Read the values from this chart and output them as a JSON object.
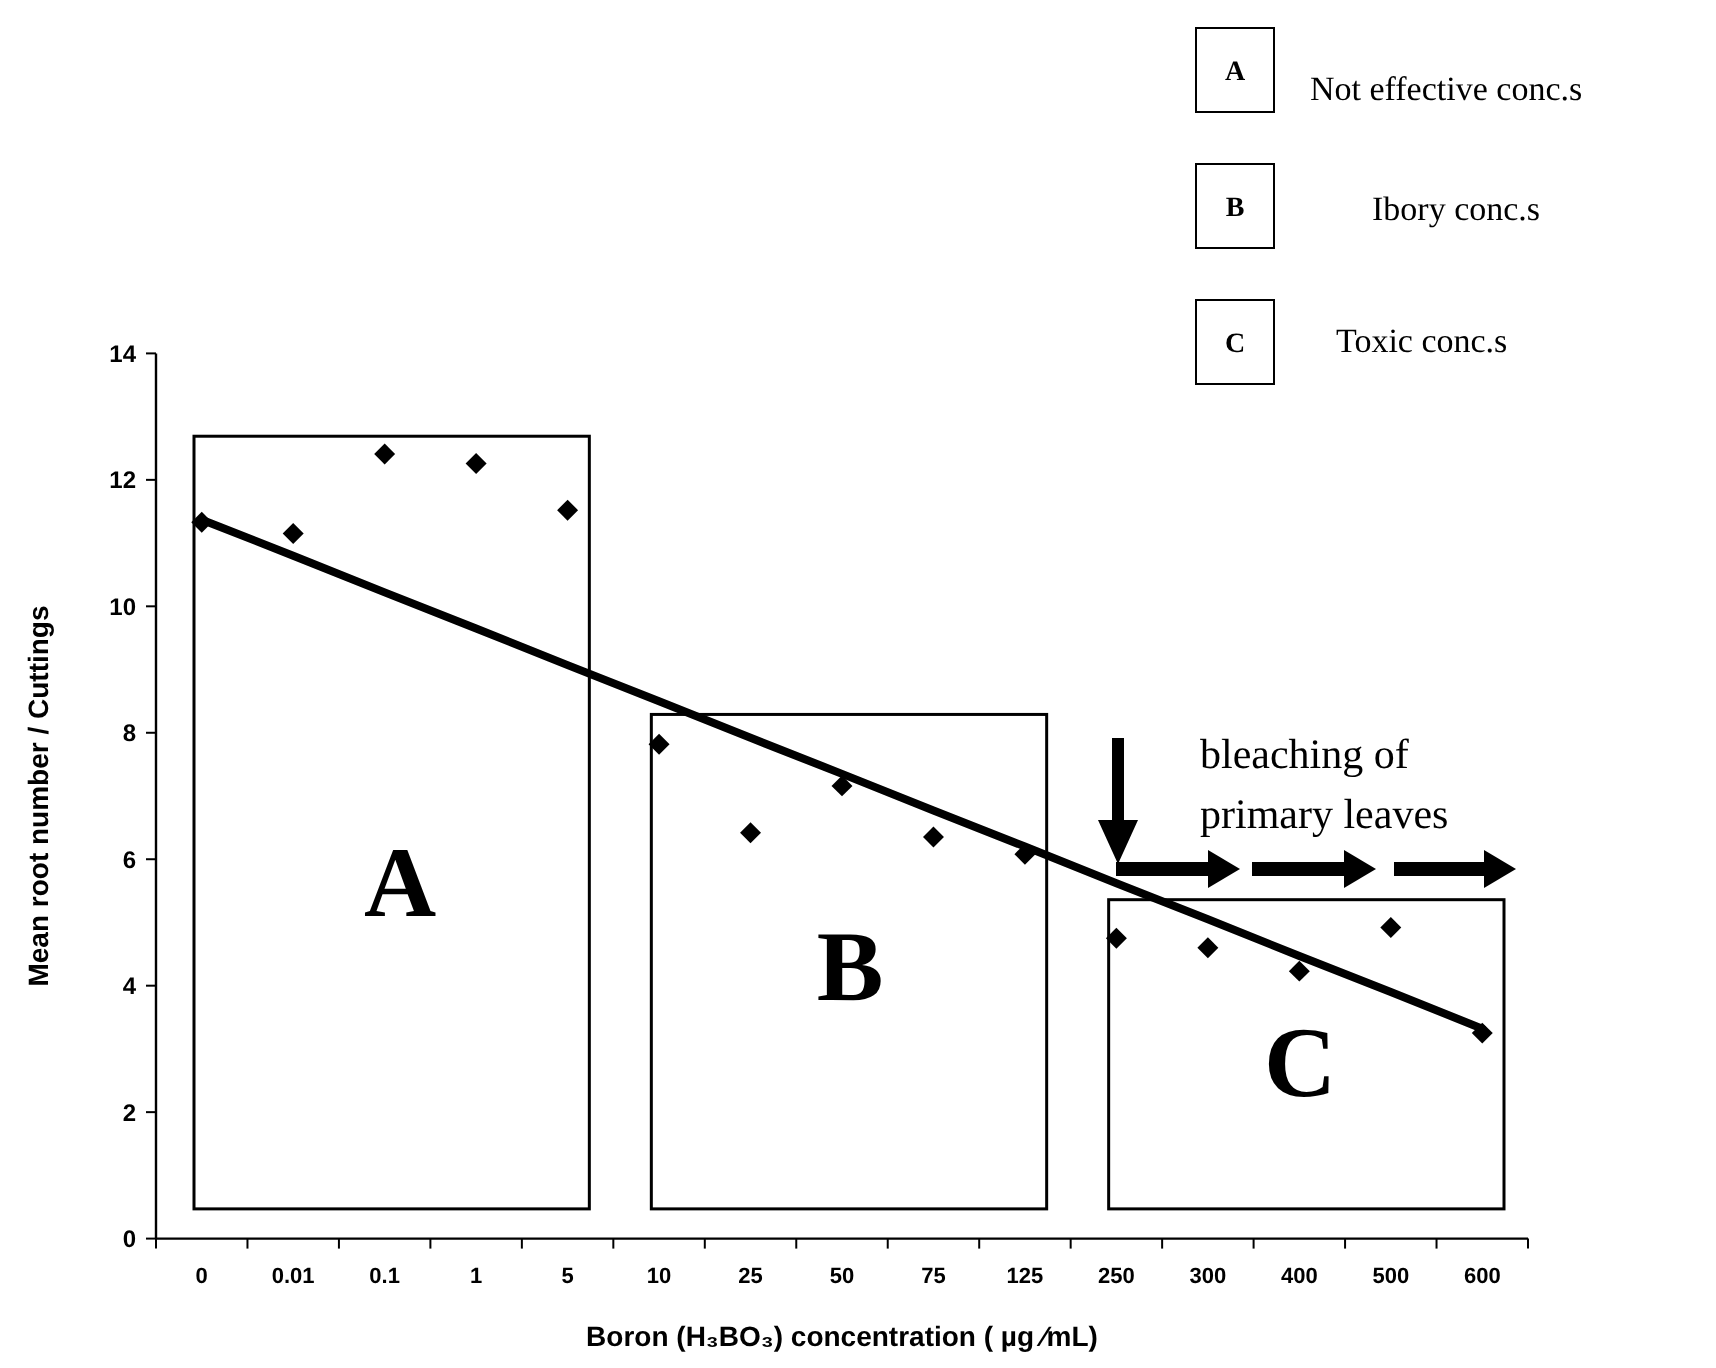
{
  "chart_data": {
    "type": "scatter",
    "xlabel": "Boron (H₃BO₃) concentration ( µg ⁄mL)",
    "ylabel": "Mean root number / Cuttings",
    "categories": [
      "0",
      "0.01",
      "0.1",
      "1",
      "5",
      "10",
      "25",
      "50",
      "75",
      "125",
      "250",
      "300",
      "400",
      "500",
      "600"
    ],
    "ylim": [
      0,
      14
    ],
    "yticks": [
      0,
      2,
      4,
      6,
      8,
      10,
      12,
      14
    ],
    "grid": false,
    "series": [
      {
        "color": "#000000",
        "marker": "diamond",
        "values": [
          11.33,
          11.15,
          12.41,
          12.26,
          11.52,
          7.82,
          6.42,
          7.16,
          6.35,
          6.08,
          4.75,
          4.6,
          4.23,
          4.92,
          3.25
        ]
      },
      {
        "type": "line",
        "color": "#000000",
        "marker": "none",
        "line_style": "solid",
        "values": [
          11.37,
          10.8,
          10.22,
          9.65,
          9.07,
          8.5,
          7.92,
          7.35,
          6.77,
          6.2,
          5.62,
          5.05,
          4.47,
          3.9,
          3.32
        ]
      }
    ],
    "annotations": [
      "A",
      "B",
      "C",
      "A",
      "Not effective conc.s",
      "B",
      "Ibory conc.s",
      "C",
      "Toxic conc.s",
      "bleaching of primary leaves"
    ]
  }
}
